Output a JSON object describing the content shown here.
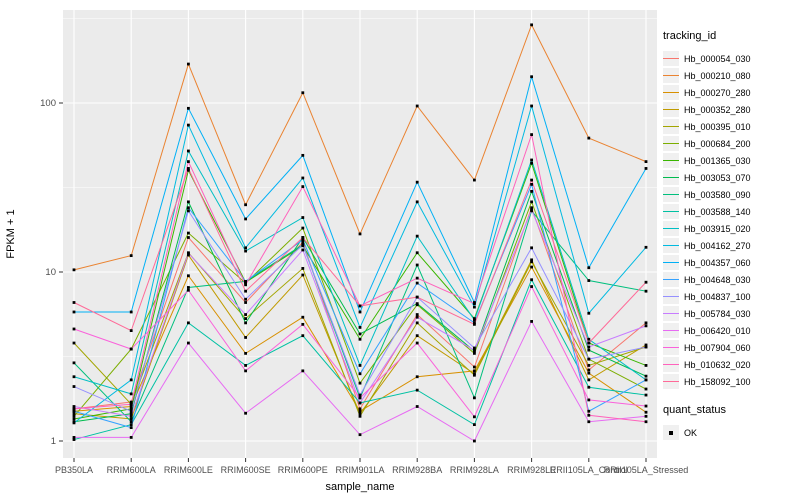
{
  "chart_data": {
    "type": "line",
    "title": "",
    "xlabel": "sample_name",
    "ylabel": "FPKM + 1",
    "y_scale": "log10",
    "y_ticks": [
      1,
      10,
      100
    ],
    "y_minor_ticks": [
      3.162,
      31.62,
      316.2
    ],
    "ylim": [
      0.95,
      355
    ],
    "grid": "on",
    "panel_bg": "#EBEBEB",
    "grid_color": "#FFFFFF",
    "tick_label_color": "#4D4D4D",
    "point_color": "#000000",
    "point_shape": "square",
    "legend_position": "right",
    "legend_title": "tracking_id",
    "legend2": {
      "title": "quant_status",
      "items": [
        "OK"
      ]
    },
    "categories": [
      "PB350LA",
      "RRIM600LA",
      "RRIM600LE",
      "RRIM600SE",
      "RRIM600PE",
      "RRIM901LA",
      "RRIM928BA",
      "RRIM928LA",
      "RRIM928LE",
      "RRII105LA_Control",
      "RRII105LA_Stressed"
    ],
    "series": [
      {
        "name": "Hb_000054_030",
        "color": "#F8766D",
        "values": [
          1.55,
          1.7,
          16.0,
          6.6,
          15.0,
          1.55,
          5.6,
          2.74,
          24.0,
          2.63,
          5.0
        ]
      },
      {
        "name": "Hb_000210_080",
        "color": "#EA8331",
        "values": [
          10.3,
          12.5,
          170,
          25.0,
          115,
          16.8,
          96,
          35.0,
          290,
          62,
          45
        ]
      },
      {
        "name": "Hb_000270_280",
        "color": "#D89000",
        "values": [
          1.5,
          1.6,
          9.5,
          3.3,
          5.4,
          1.5,
          2.4,
          2.6,
          10.7,
          2.52,
          1.48
        ]
      },
      {
        "name": "Hb_000352_280",
        "color": "#C09B00",
        "values": [
          1.45,
          1.35,
          12.6,
          4.1,
          9.6,
          1.45,
          4.2,
          2.5,
          11.8,
          2.3,
          3.7
        ]
      },
      {
        "name": "Hb_000395_010",
        "color": "#A3A500",
        "values": [
          3.8,
          1.65,
          13.0,
          5.3,
          10.5,
          1.4,
          5.0,
          2.45,
          11.5,
          2.8,
          3.6
        ]
      },
      {
        "name": "Hb_000684_200",
        "color": "#7CAE00",
        "values": [
          1.4,
          3.5,
          17.0,
          8.6,
          18.2,
          2.2,
          6.4,
          3.3,
          26.0,
          3.05,
          2.03
        ]
      },
      {
        "name": "Hb_001365_030",
        "color": "#39B600",
        "values": [
          1.35,
          1.55,
          40.0,
          8.7,
          14.3,
          4.0,
          13.0,
          5.3,
          44.0,
          3.8,
          2.8
        ]
      },
      {
        "name": "Hb_003053_070",
        "color": "#00BB4E",
        "values": [
          1.3,
          1.45,
          26.0,
          5.0,
          16.0,
          4.3,
          6.5,
          3.4,
          30.0,
          3.45,
          2.42
        ]
      },
      {
        "name": "Hb_003580_090",
        "color": "#00BF7D",
        "values": [
          2.9,
          1.3,
          8.1,
          8.8,
          14.5,
          1.8,
          11.0,
          1.8,
          23.0,
          8.9,
          7.7
        ]
      },
      {
        "name": "Hb_003588_140",
        "color": "#00C1A3",
        "values": [
          1.02,
          1.25,
          5.0,
          2.8,
          4.2,
          1.68,
          2.0,
          1.25,
          9.0,
          2.08,
          1.87
        ]
      },
      {
        "name": "Hb_003915_020",
        "color": "#00BFC4",
        "values": [
          2.4,
          1.9,
          52.0,
          13.3,
          21.0,
          2.8,
          16.3,
          5.2,
          46.0,
          4.0,
          2.3
        ]
      },
      {
        "name": "Hb_004162_270",
        "color": "#00BAE0",
        "values": [
          1.28,
          2.3,
          74.0,
          13.9,
          36.0,
          4.7,
          26.0,
          6.2,
          96.0,
          5.7,
          14.0
        ]
      },
      {
        "name": "Hb_004357_060",
        "color": "#00B0F6",
        "values": [
          5.8,
          5.8,
          93.0,
          20.6,
          49.0,
          5.8,
          34.0,
          6.6,
          143,
          10.6,
          41.0
        ]
      },
      {
        "name": "Hb_004648_030",
        "color": "#35A2FF",
        "values": [
          1.5,
          1.2,
          24.0,
          8.8,
          15.5,
          2.5,
          8.6,
          5.0,
          33.0,
          1.5,
          2.3
        ]
      },
      {
        "name": "Hb_004837_100",
        "color": "#9590FF",
        "values": [
          2.1,
          1.5,
          23.0,
          6.9,
          14.5,
          1.87,
          7.1,
          3.55,
          13.9,
          3.05,
          3.6
        ]
      },
      {
        "name": "Hb_005784_030",
        "color": "#C77CFF",
        "values": [
          1.6,
          1.4,
          12.9,
          5.6,
          13.5,
          1.68,
          5.4,
          3.45,
          23.3,
          3.6,
          4.8
        ]
      },
      {
        "name": "Hb_006420_010",
        "color": "#E76BF3",
        "values": [
          1.05,
          1.05,
          3.8,
          1.46,
          2.6,
          1.09,
          1.6,
          1.0,
          5.1,
          1.3,
          1.4
        ]
      },
      {
        "name": "Hb_007904_060",
        "color": "#FA62DB",
        "values": [
          4.6,
          3.5,
          7.8,
          2.6,
          4.9,
          1.8,
          3.8,
          1.39,
          8.2,
          1.75,
          1.61
        ]
      },
      {
        "name": "Hb_010632_020",
        "color": "#FF62BC",
        "values": [
          1.55,
          1.65,
          45.0,
          8.4,
          32.0,
          6.3,
          9.2,
          6.5,
          65.0,
          1.42,
          1.3
        ]
      },
      {
        "name": "Hb_158092_100",
        "color": "#FF6A98",
        "values": [
          6.6,
          4.5,
          41.0,
          7.7,
          16.0,
          6.3,
          7.1,
          4.9,
          35.0,
          3.8,
          8.7
        ]
      }
    ]
  }
}
